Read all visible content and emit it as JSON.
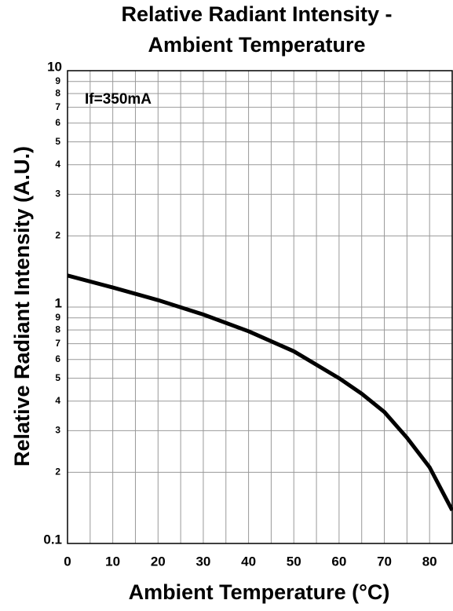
{
  "chart_data": {
    "type": "line",
    "title": [
      "Relative Radiant Intensity -",
      "Ambient Temperature"
    ],
    "x_label": "Ambient Temperature (°C)",
    "y_label": "Relative Radiant Intensity (A.U.)",
    "annotation": "If=350mA",
    "x": [
      0,
      10,
      20,
      30,
      40,
      50,
      60,
      65,
      70,
      75,
      80,
      85
    ],
    "series": [
      {
        "name": "If=350mA",
        "color": "#000000",
        "values": [
          1.36,
          1.21,
          1.07,
          0.93,
          0.79,
          0.65,
          0.5,
          0.43,
          0.36,
          0.28,
          0.21,
          0.138
        ]
      }
    ],
    "xlim": [
      0,
      85
    ],
    "xticks": [
      0,
      10,
      20,
      30,
      40,
      50,
      60,
      70,
      80
    ],
    "x_minor_ticks": [
      5,
      15,
      25,
      35,
      45,
      55,
      65,
      75,
      85
    ],
    "ylim": [
      0.1,
      10
    ],
    "y_log_scale": true,
    "yticks": [
      0.1,
      {
        "value": 0.2,
        "label": "2"
      },
      {
        "value": 0.3,
        "label": "3"
      },
      {
        "value": 0.4,
        "label": "4"
      },
      {
        "value": 0.5,
        "label": "5"
      },
      {
        "value": 0.6,
        "label": "6"
      },
      {
        "value": 0.7,
        "label": "7"
      },
      {
        "value": 0.8,
        "label": "8"
      },
      {
        "value": 0.9,
        "label": "9"
      },
      1,
      2,
      3,
      4,
      5,
      6,
      7,
      8,
      9,
      10
    ],
    "grid": true
  }
}
